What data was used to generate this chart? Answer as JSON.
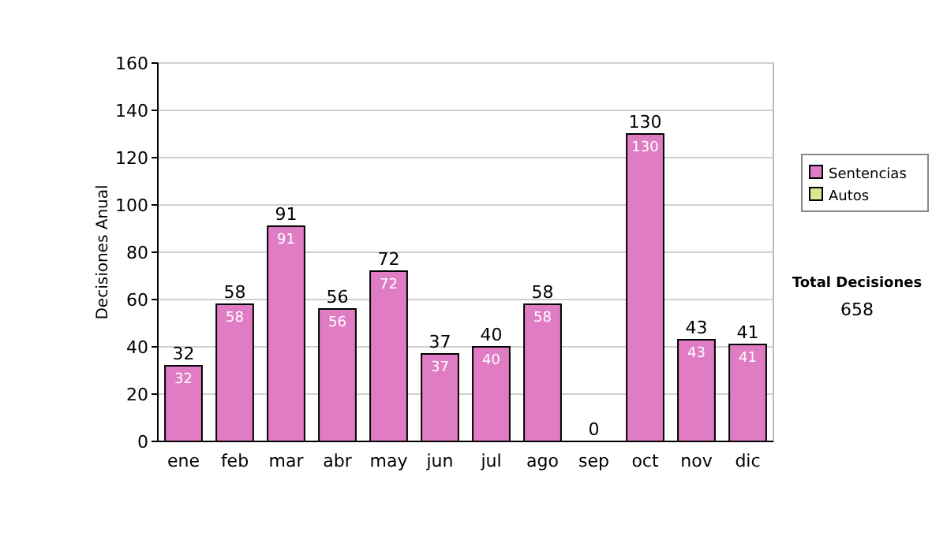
{
  "chart_data": {
    "type": "bar",
    "stacked": true,
    "ylabel": "Decisiones Anual",
    "categories": [
      "ene",
      "feb",
      "mar",
      "abr",
      "may",
      "jun",
      "jul",
      "ago",
      "sep",
      "oct",
      "nov",
      "dic"
    ],
    "series": [
      {
        "name": "Sentencias",
        "color": "#e07cc4",
        "values": [
          32,
          58,
          91,
          56,
          72,
          37,
          40,
          58,
          0,
          130,
          43,
          41
        ],
        "value_labels": [
          "32",
          "58",
          "91",
          "56",
          "72",
          "37",
          "40",
          "58",
          null,
          "130",
          "43",
          "41"
        ]
      },
      {
        "name": "Autos",
        "color": "#d8e890",
        "values": [
          0,
          0,
          0,
          0,
          0,
          0,
          0,
          0,
          0,
          0,
          0,
          0
        ]
      }
    ],
    "totals": [
      "32",
      "58",
      "91",
      "56",
      "72",
      "37",
      "40",
      "58",
      "0",
      "130",
      "43",
      "41"
    ],
    "ylim": [
      0,
      160
    ],
    "yticks": [
      0,
      20,
      40,
      60,
      80,
      100,
      120,
      140,
      160
    ],
    "grid": "y",
    "legend": "right",
    "annotations": [
      "Total Decisiones",
      "658"
    ]
  }
}
